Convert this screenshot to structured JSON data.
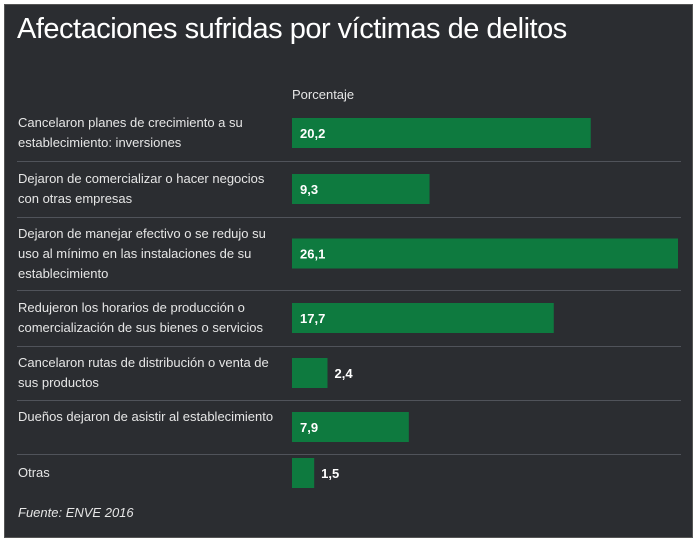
{
  "chart_data": {
    "type": "bar",
    "orientation": "horizontal",
    "title": "Afectaciones sufridas por víctimas de delitos",
    "value_header": "Porcentaje",
    "categories": [
      "Cancelaron planes de crecimiento a su establecimiento: inversiones",
      "Dejaron de comercializar o hacer negocios con otras empresas",
      "Dejaron de manejar efectivo o se redujo su uso al mínimo en las instalaciones de su establecimiento",
      "Redujeron los horarios de producción o comercialización de sus bienes o servicios",
      "Cancelaron rutas de distribución o venta de sus productos",
      "Dueños dejaron de asistir al establecimiento",
      "Otras"
    ],
    "values": [
      20.2,
      9.3,
      26.1,
      17.7,
      2.4,
      7.9,
      1.5
    ],
    "value_labels": [
      "20,2",
      "9,3",
      "26,1",
      "17,7",
      "2,4",
      "7,9",
      "1,5"
    ],
    "xlim": [
      0,
      26.1
    ],
    "bar_color": "#0e7a3f",
    "source": "Fuente: ENVE 2016"
  }
}
